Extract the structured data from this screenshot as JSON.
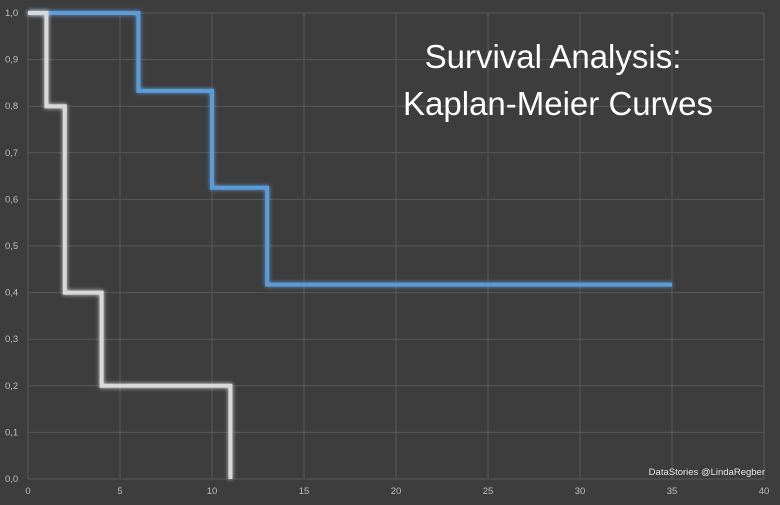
{
  "chart_data": {
    "type": "line",
    "title_lines": [
      "Survival Analysis:",
      "Kaplan-Meier Curves"
    ],
    "credit": "DataStories @LindaRegber",
    "xlim": [
      0,
      40
    ],
    "ylim": [
      0,
      1
    ],
    "x_ticks": [
      "0",
      "5",
      "10",
      "15",
      "20",
      "25",
      "30",
      "35",
      "40"
    ],
    "y_ticks": [
      "0,0",
      "0,1",
      "0,2",
      "0,3",
      "0,4",
      "0,5",
      "0,6",
      "0,7",
      "0,8",
      "0,9",
      "1,0"
    ],
    "grid": true,
    "step": true,
    "series": [
      {
        "color": "#5b9bd5",
        "x": [
          0,
          6,
          10,
          13,
          35
        ],
        "y": [
          1.0,
          0.833,
          0.625,
          0.417,
          0.417
        ]
      },
      {
        "color": "#d9d9d9",
        "x": [
          0,
          1,
          2,
          4,
          11,
          11
        ],
        "y": [
          1.0,
          0.8,
          0.4,
          0.2,
          0.2,
          0.0
        ]
      }
    ]
  }
}
